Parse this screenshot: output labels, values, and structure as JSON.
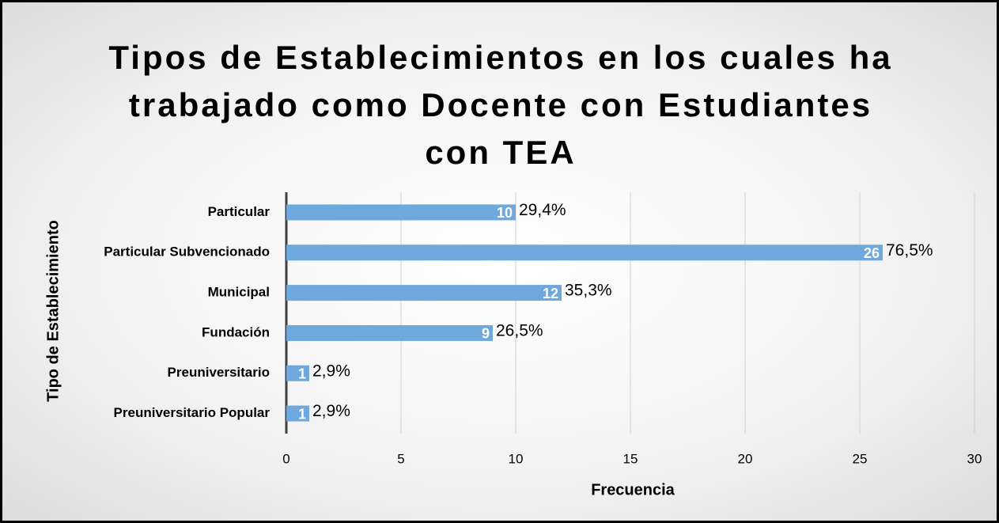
{
  "chart_data": {
    "type": "bar",
    "orientation": "horizontal",
    "title": "Tipos de Establecimientos en los cuales ha trabajado como Docente con Estudiantes con TEA",
    "x_label": "Frecuencia",
    "y_label": "Tipo de Establecimiento",
    "categories": [
      "Particular",
      "Particular Subvencionado",
      "Municipal",
      "Fundación",
      "Preuniversitario",
      "Preuniversitario Popular"
    ],
    "values": [
      10,
      26,
      12,
      9,
      1,
      1
    ],
    "percent_labels": [
      "29,4%",
      "76,5%",
      "35,3%",
      "26,5%",
      "2,9%",
      "2,9%"
    ],
    "color": "#6fa8dc",
    "xlim": [
      0,
      30
    ],
    "xticks": [
      0,
      5,
      10,
      15,
      20,
      25,
      30
    ],
    "grid": true
  }
}
